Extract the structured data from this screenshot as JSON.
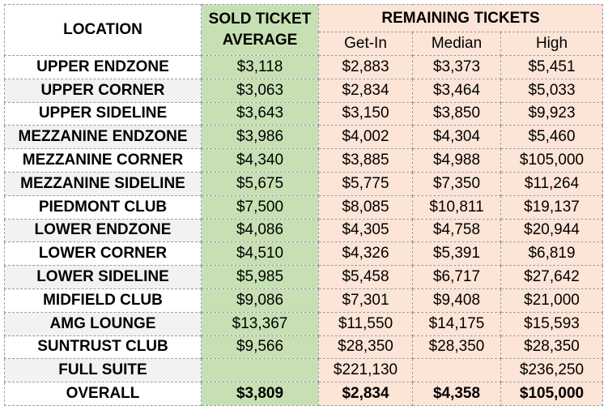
{
  "headers": {
    "location": "LOCATION",
    "sold_line1": "SOLD TICKET",
    "sold_line2": "AVERAGE",
    "remaining": "REMAINING TICKETS",
    "get_in": "Get-In",
    "median": "Median",
    "high": "High"
  },
  "colors": {
    "sold_fill": "#c6e0b4",
    "remaining_fill": "#fce4d6",
    "alt_row_fill": "#f2f2f2"
  },
  "rows": [
    {
      "location": "UPPER ENDZONE",
      "sold_avg": "$3,118",
      "get_in": "$2,883",
      "median": "$3,373",
      "high": "$5,451"
    },
    {
      "location": "UPPER CORNER",
      "sold_avg": "$3,063",
      "get_in": "$2,834",
      "median": "$3,464",
      "high": "$5,033"
    },
    {
      "location": "UPPER SIDELINE",
      "sold_avg": "$3,643",
      "get_in": "$3,150",
      "median": "$3,850",
      "high": "$9,923"
    },
    {
      "location": "MEZZANINE ENDZONE",
      "sold_avg": "$3,986",
      "get_in": "$4,002",
      "median": "$4,304",
      "high": "$5,460"
    },
    {
      "location": "MEZZANINE CORNER",
      "sold_avg": "$4,340",
      "get_in": "$3,885",
      "median": "$4,988",
      "high": "$105,000"
    },
    {
      "location": "MEZZANINE SIDELINE",
      "sold_avg": "$5,675",
      "get_in": "$5,775",
      "median": "$7,350",
      "high": "$11,264"
    },
    {
      "location": "PIEDMONT CLUB",
      "sold_avg": "$7,500",
      "get_in": "$8,085",
      "median": "$10,811",
      "high": "$19,137"
    },
    {
      "location": "LOWER ENDZONE",
      "sold_avg": "$4,086",
      "get_in": "$4,305",
      "median": "$4,758",
      "high": "$20,944"
    },
    {
      "location": "LOWER CORNER",
      "sold_avg": "$4,510",
      "get_in": "$4,326",
      "median": "$5,391",
      "high": "$6,819"
    },
    {
      "location": "LOWER SIDELINE",
      "sold_avg": "$5,985",
      "get_in": "$5,458",
      "median": "$6,717",
      "high": "$27,642"
    },
    {
      "location": "MIDFIELD CLUB",
      "sold_avg": "$9,086",
      "get_in": "$7,301",
      "median": "$9,408",
      "high": "$21,000"
    },
    {
      "location": "AMG LOUNGE",
      "sold_avg": "$13,367",
      "get_in": "$11,550",
      "median": "$14,175",
      "high": "$15,593"
    },
    {
      "location": "SUNTRUST CLUB",
      "sold_avg": "$9,566",
      "get_in": "$28,350",
      "median": "$28,350",
      "high": "$28,350"
    },
    {
      "location": "FULL SUITE",
      "sold_avg": "",
      "get_in": "$221,130",
      "median": "",
      "high": "$236,250"
    }
  ],
  "total": {
    "location": "OVERALL",
    "sold_avg": "$3,809",
    "get_in": "$2,834",
    "median": "$4,358",
    "high": "$105,000"
  }
}
